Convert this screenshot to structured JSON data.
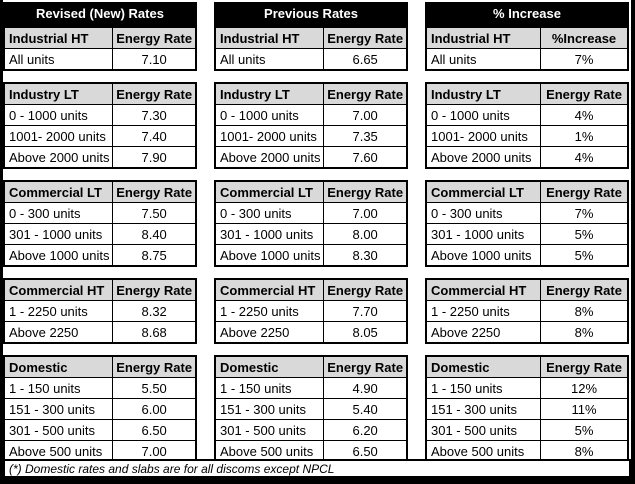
{
  "sheet": {
    "footer_note": "(*) Domestic rates and slabs are for all discoms except NPCL",
    "colors": {
      "title_bg": "#000000",
      "title_text": "#ffffff",
      "header_bg": "#d9d9d9",
      "border": "#000000",
      "cell_bg": "#ffffff"
    },
    "columns": [
      {
        "title": "Revised (New) Rates",
        "sections": [
          {
            "header": [
              "Industrial HT",
              "Energy Rate"
            ],
            "rows": [
              [
                "All units",
                "7.10"
              ]
            ]
          },
          {
            "header": [
              "Industry LT",
              "Energy Rate"
            ],
            "rows": [
              [
                "0 - 1000 units",
                "7.30"
              ],
              [
                "1001- 2000 units",
                "7.40"
              ],
              [
                "Above 2000 units",
                "7.90"
              ]
            ]
          },
          {
            "header": [
              "Commercial LT",
              "Energy Rate"
            ],
            "rows": [
              [
                "0 - 300 units",
                "7.50"
              ],
              [
                "301 - 1000 units",
                "8.40"
              ],
              [
                "Above 1000 units",
                "8.75"
              ]
            ]
          },
          {
            "header": [
              "Commercial HT",
              "Energy Rate"
            ],
            "rows": [
              [
                "1 - 2250 units",
                "8.32"
              ],
              [
                "Above 2250",
                "8.68"
              ]
            ]
          },
          {
            "header": [
              "Domestic",
              "Energy Rate"
            ],
            "rows": [
              [
                "1 - 150 units",
                "5.50"
              ],
              [
                "151 - 300 units",
                "6.00"
              ],
              [
                "301 - 500 units",
                "6.50"
              ],
              [
                "Above 500 units",
                "7.00"
              ]
            ]
          }
        ]
      },
      {
        "title": "Previous Rates",
        "sections": [
          {
            "header": [
              "Industrial HT",
              "Energy Rate"
            ],
            "rows": [
              [
                "All units",
                "6.65"
              ]
            ]
          },
          {
            "header": [
              "Industry LT",
              "Energy Rate"
            ],
            "rows": [
              [
                "0 - 1000 units",
                "7.00"
              ],
              [
                "1001- 2000 units",
                "7.35"
              ],
              [
                "Above 2000 units",
                "7.60"
              ]
            ]
          },
          {
            "header": [
              "Commercial LT",
              "Energy Rate"
            ],
            "rows": [
              [
                "0 - 300 units",
                "7.00"
              ],
              [
                "301 - 1000 units",
                "8.00"
              ],
              [
                "Above 1000 units",
                "8.30"
              ]
            ]
          },
          {
            "header": [
              "Commercial HT",
              "Energy Rate"
            ],
            "rows": [
              [
                "1 - 2250 units",
                "7.70"
              ],
              [
                "Above 2250",
                "8.05"
              ]
            ]
          },
          {
            "header": [
              "Domestic",
              "Energy Rate"
            ],
            "rows": [
              [
                "1 - 150 units",
                "4.90"
              ],
              [
                "151 - 300 units",
                "5.40"
              ],
              [
                "301 - 500 units",
                "6.20"
              ],
              [
                "Above 500 units",
                "6.50"
              ]
            ]
          }
        ]
      },
      {
        "title": "% Increase",
        "sections": [
          {
            "header": [
              "Industrial HT",
              "%Increase"
            ],
            "rows": [
              [
                "All units",
                "7%"
              ]
            ]
          },
          {
            "header": [
              "Industry LT",
              "Energy Rate"
            ],
            "rows": [
              [
                "0 - 1000 units",
                "4%"
              ],
              [
                "1001- 2000 units",
                "1%"
              ],
              [
                "Above 2000 units",
                "4%"
              ]
            ]
          },
          {
            "header": [
              "Commercial LT",
              "Energy Rate"
            ],
            "rows": [
              [
                "0 - 300 units",
                "7%"
              ],
              [
                "301 - 1000 units",
                "5%"
              ],
              [
                "Above 1000 units",
                "5%"
              ]
            ]
          },
          {
            "header": [
              "Commercial HT",
              "Energy Rate"
            ],
            "rows": [
              [
                "1 - 2250 units",
                "8%"
              ],
              [
                "Above 2250",
                "8%"
              ]
            ]
          },
          {
            "header": [
              "Domestic",
              "Energy Rate"
            ],
            "rows": [
              [
                "1 - 150 units",
                "12%"
              ],
              [
                "151 - 300 units",
                "11%"
              ],
              [
                "301 - 500 units",
                "5%"
              ],
              [
                "Above 500 units",
                "8%"
              ]
            ]
          }
        ]
      }
    ]
  }
}
